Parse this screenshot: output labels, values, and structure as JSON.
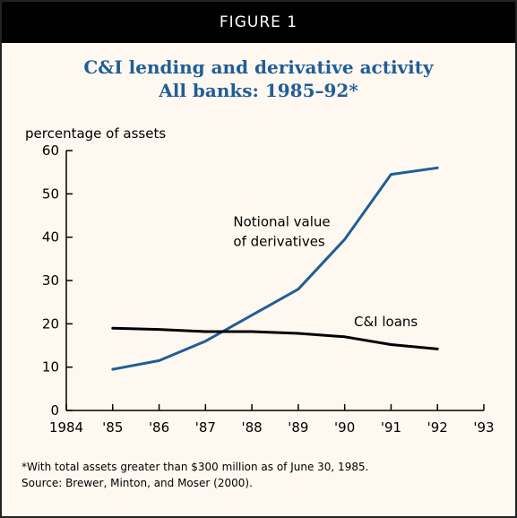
{
  "figure": {
    "label": "FIGURE 1",
    "title_line1": "C&I lending and derivative activity",
    "title_line2": "All banks: 1985–92*",
    "footnote_line1": "*With total assets greater than $300 million as of June 30, 1985.",
    "footnote_line2": "Source: Brewer, Minton, and Moser (2000).",
    "colors": {
      "banner_bg": "#000000",
      "background": "#fff8f0",
      "title": "#1f5e96",
      "derivatives_line": "#1f5e96",
      "loans_line": "#000000"
    }
  },
  "chart_data": {
    "type": "line",
    "title": "C&I lending and derivative activity All banks: 1985–92*",
    "ylabel": "percentage of assets",
    "xlabel": "",
    "xlim": [
      1984,
      1993
    ],
    "ylim": [
      0,
      60
    ],
    "x_tick_values": [
      1984,
      1985,
      1986,
      1987,
      1988,
      1989,
      1990,
      1991,
      1992,
      1993
    ],
    "x_tick_labels": [
      "1984",
      "'85",
      "'86",
      "'87",
      "'88",
      "'89",
      "'90",
      "'91",
      "'92",
      "'93"
    ],
    "y_ticks": [
      0,
      10,
      20,
      30,
      40,
      50,
      60
    ],
    "grid": false,
    "legend": "none",
    "series": [
      {
        "name": "Notional value of derivatives",
        "label_lines": [
          "Notional value",
          "of derivatives"
        ],
        "color": "#1f5e96",
        "x": [
          1985,
          1986,
          1987,
          1988,
          1989,
          1990,
          1991,
          1992
        ],
        "y": [
          9.5,
          11.5,
          16,
          22,
          28,
          39.5,
          54.5,
          56
        ]
      },
      {
        "name": "C&I loans",
        "label_lines": [
          "C&I loans"
        ],
        "color": "#000000",
        "x": [
          1985,
          1986,
          1987,
          1988,
          1989,
          1990,
          1991,
          1992
        ],
        "y": [
          19,
          18.7,
          18.2,
          18.2,
          17.8,
          17,
          15.2,
          14.2
        ]
      }
    ]
  }
}
